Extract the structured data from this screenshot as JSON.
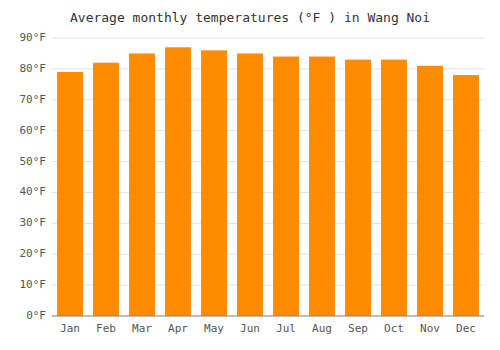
{
  "chart_data": {
    "type": "bar",
    "title": "Average monthly temperatures (°F ) in Wang Noi",
    "categories": [
      "Jan",
      "Feb",
      "Mar",
      "Apr",
      "May",
      "Jun",
      "Jul",
      "Aug",
      "Sep",
      "Oct",
      "Nov",
      "Dec"
    ],
    "values": [
      79,
      82,
      85,
      87,
      86,
      85,
      84,
      84,
      83,
      83,
      81,
      78
    ],
    "color": "#FF8C00",
    "ylim": [
      0,
      90
    ],
    "yticks": [
      {
        "value": 0,
        "label": "0°F"
      },
      {
        "value": 10,
        "label": "10°F"
      },
      {
        "value": 20,
        "label": "20°F"
      },
      {
        "value": 30,
        "label": "30°F"
      },
      {
        "value": 40,
        "label": "40°F"
      },
      {
        "value": 50,
        "label": "50°F"
      },
      {
        "value": 60,
        "label": "60°F"
      },
      {
        "value": 70,
        "label": "70°F"
      },
      {
        "value": 80,
        "label": "80°F"
      },
      {
        "value": 90,
        "label": "90°F"
      }
    ],
    "grid": true
  }
}
